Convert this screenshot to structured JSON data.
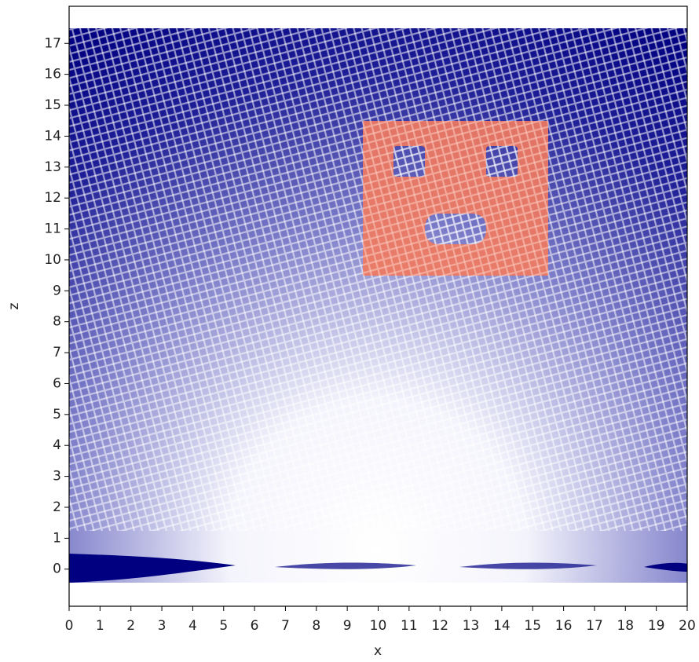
{
  "chart_data": {
    "type": "image",
    "x_label": "x",
    "y_label": "z",
    "xlim": [
      0,
      20
    ],
    "ylim": [
      -1.2,
      18.2
    ],
    "xticks": [
      0,
      1,
      2,
      3,
      4,
      5,
      6,
      7,
      8,
      9,
      10,
      11,
      12,
      13,
      14,
      15,
      16,
      17,
      18,
      19,
      20
    ],
    "yticks": [
      0,
      1,
      2,
      3,
      4,
      5,
      6,
      7,
      8,
      9,
      10,
      11,
      12,
      13,
      14,
      15,
      16,
      17
    ]
  }
}
